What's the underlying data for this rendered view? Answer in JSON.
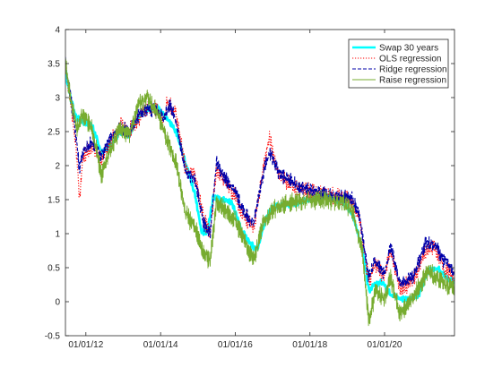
{
  "chart_data": {
    "type": "line",
    "title": "",
    "xlabel": "",
    "ylabel": "",
    "xlim": [
      "2011-06-15",
      "2021-11-15"
    ],
    "ylim": [
      -0.5,
      4
    ],
    "x_ticks": [
      "2012-01-01",
      "2014-01-01",
      "2016-01-01",
      "2018-01-01",
      "2020-01-01"
    ],
    "x_tick_labels": [
      "01/01/12",
      "01/01/14",
      "01/01/16",
      "01/01/18",
      "01/01/20"
    ],
    "y_ticks": [
      -0.5,
      0,
      0.5,
      1,
      1.5,
      2,
      2.5,
      3,
      3.5,
      4
    ],
    "y_tick_labels": [
      "-0.5",
      "0",
      "0.5",
      "1",
      "1.5",
      "2",
      "2.5",
      "3",
      "3.5",
      "4"
    ],
    "grid": false,
    "legend_position": "top-right",
    "series": [
      {
        "name": "Swap 30 years",
        "color": "#00ffff",
        "style": "solid-thick",
        "points": [
          [
            "2011-06-15",
            3.4
          ],
          [
            "2011-08-01",
            3.0
          ],
          [
            "2011-10-01",
            2.7
          ],
          [
            "2011-12-01",
            2.65
          ],
          [
            "2012-03-01",
            2.6
          ],
          [
            "2012-06-01",
            2.2
          ],
          [
            "2012-09-01",
            2.3
          ],
          [
            "2012-12-01",
            2.5
          ],
          [
            "2013-03-01",
            2.45
          ],
          [
            "2013-06-01",
            2.7
          ],
          [
            "2013-09-01",
            2.85
          ],
          [
            "2013-12-01",
            2.85
          ],
          [
            "2014-03-01",
            2.7
          ],
          [
            "2014-06-01",
            2.5
          ],
          [
            "2014-09-01",
            2.05
          ],
          [
            "2014-12-01",
            1.6
          ],
          [
            "2015-02-01",
            1.05
          ],
          [
            "2015-04-01",
            1.0
          ],
          [
            "2015-06-01",
            1.55
          ],
          [
            "2015-09-01",
            1.5
          ],
          [
            "2015-12-01",
            1.45
          ],
          [
            "2016-03-01",
            1.05
          ],
          [
            "2016-06-01",
            0.85
          ],
          [
            "2016-08-01",
            0.75
          ],
          [
            "2016-11-01",
            1.25
          ],
          [
            "2017-01-01",
            1.4
          ],
          [
            "2017-06-01",
            1.4
          ],
          [
            "2017-12-01",
            1.5
          ],
          [
            "2018-06-01",
            1.55
          ],
          [
            "2018-12-01",
            1.45
          ],
          [
            "2019-03-01",
            1.25
          ],
          [
            "2019-06-01",
            0.75
          ],
          [
            "2019-08-01",
            0.15
          ],
          [
            "2019-10-01",
            0.25
          ],
          [
            "2019-12-01",
            0.3
          ],
          [
            "2020-03-01",
            0.1
          ],
          [
            "2020-06-01",
            0.05
          ],
          [
            "2020-09-01",
            0.05
          ],
          [
            "2020-12-01",
            0.1
          ],
          [
            "2021-03-01",
            0.45
          ],
          [
            "2021-06-01",
            0.5
          ],
          [
            "2021-09-01",
            0.35
          ],
          [
            "2021-11-15",
            0.3
          ]
        ]
      },
      {
        "name": "OLS regression",
        "color": "#ff0000",
        "style": "dotted",
        "points": [
          [
            "2011-06-15",
            3.45
          ],
          [
            "2011-08-01",
            3.0
          ],
          [
            "2011-10-01",
            2.2
          ],
          [
            "2011-11-01",
            1.5
          ],
          [
            "2011-12-01",
            2.1
          ],
          [
            "2012-03-01",
            2.3
          ],
          [
            "2012-06-01",
            2.1
          ],
          [
            "2012-09-01",
            2.35
          ],
          [
            "2012-12-01",
            2.6
          ],
          [
            "2013-03-01",
            2.5
          ],
          [
            "2013-06-01",
            2.7
          ],
          [
            "2013-09-01",
            2.85
          ],
          [
            "2013-12-01",
            2.8
          ],
          [
            "2014-02-01",
            2.6
          ],
          [
            "2014-03-01",
            2.95
          ],
          [
            "2014-06-01",
            2.75
          ],
          [
            "2014-09-01",
            1.95
          ],
          [
            "2014-12-01",
            1.85
          ],
          [
            "2015-03-01",
            1.2
          ],
          [
            "2015-05-01",
            1.0
          ],
          [
            "2015-07-01",
            1.95
          ],
          [
            "2015-10-01",
            1.75
          ],
          [
            "2016-01-01",
            1.55
          ],
          [
            "2016-04-01",
            1.25
          ],
          [
            "2016-07-01",
            1.1
          ],
          [
            "2016-10-01",
            1.95
          ],
          [
            "2016-12-01",
            2.4
          ],
          [
            "2017-03-01",
            1.85
          ],
          [
            "2017-09-01",
            1.65
          ],
          [
            "2018-03-01",
            1.6
          ],
          [
            "2018-09-01",
            1.55
          ],
          [
            "2019-02-01",
            1.5
          ],
          [
            "2019-05-01",
            1.2
          ],
          [
            "2019-08-01",
            0.3
          ],
          [
            "2019-10-01",
            0.55
          ],
          [
            "2020-01-01",
            0.35
          ],
          [
            "2020-03-01",
            0.75
          ],
          [
            "2020-06-01",
            0.2
          ],
          [
            "2020-10-01",
            0.3
          ],
          [
            "2021-02-01",
            0.75
          ],
          [
            "2021-05-01",
            0.8
          ],
          [
            "2021-08-01",
            0.5
          ],
          [
            "2021-11-15",
            0.35
          ]
        ]
      },
      {
        "name": "Ridge regression",
        "color": "#0000aa",
        "style": "dashed",
        "points": [
          [
            "2011-06-15",
            3.5
          ],
          [
            "2011-08-01",
            3.05
          ],
          [
            "2011-10-01",
            2.4
          ],
          [
            "2011-11-01",
            1.9
          ],
          [
            "2011-12-01",
            2.2
          ],
          [
            "2012-03-01",
            2.35
          ],
          [
            "2012-06-01",
            2.15
          ],
          [
            "2012-09-01",
            2.4
          ],
          [
            "2012-12-01",
            2.55
          ],
          [
            "2013-03-01",
            2.5
          ],
          [
            "2013-06-01",
            2.75
          ],
          [
            "2013-09-01",
            2.85
          ],
          [
            "2013-12-01",
            2.8
          ],
          [
            "2014-02-01",
            2.7
          ],
          [
            "2014-04-01",
            2.9
          ],
          [
            "2014-06-01",
            2.65
          ],
          [
            "2014-09-01",
            1.9
          ],
          [
            "2014-12-01",
            1.8
          ],
          [
            "2015-03-01",
            1.15
          ],
          [
            "2015-05-01",
            1.0
          ],
          [
            "2015-07-01",
            2.05
          ],
          [
            "2015-10-01",
            1.8
          ],
          [
            "2016-01-01",
            1.6
          ],
          [
            "2016-04-01",
            1.3
          ],
          [
            "2016-07-01",
            1.15
          ],
          [
            "2016-10-01",
            1.9
          ],
          [
            "2016-12-01",
            2.2
          ],
          [
            "2017-03-01",
            1.9
          ],
          [
            "2017-09-01",
            1.7
          ],
          [
            "2018-03-01",
            1.6
          ],
          [
            "2018-09-01",
            1.55
          ],
          [
            "2019-02-01",
            1.55
          ],
          [
            "2019-05-01",
            1.25
          ],
          [
            "2019-08-01",
            0.35
          ],
          [
            "2019-10-01",
            0.6
          ],
          [
            "2020-01-01",
            0.4
          ],
          [
            "2020-03-01",
            0.8
          ],
          [
            "2020-06-01",
            0.25
          ],
          [
            "2020-10-01",
            0.35
          ],
          [
            "2021-02-01",
            0.85
          ],
          [
            "2021-05-01",
            0.85
          ],
          [
            "2021-08-01",
            0.6
          ],
          [
            "2021-11-15",
            0.45
          ]
        ]
      },
      {
        "name": "Raise regression",
        "color": "#77ac30",
        "style": "solid",
        "points": [
          [
            "2011-06-15",
            3.55
          ],
          [
            "2011-08-01",
            3.0
          ],
          [
            "2011-10-01",
            2.55
          ],
          [
            "2011-12-01",
            2.75
          ],
          [
            "2012-03-01",
            2.55
          ],
          [
            "2012-06-01",
            1.85
          ],
          [
            "2012-09-01",
            2.25
          ],
          [
            "2012-12-01",
            2.55
          ],
          [
            "2013-03-01",
            2.45
          ],
          [
            "2013-06-01",
            2.9
          ],
          [
            "2013-09-01",
            3.0
          ],
          [
            "2013-12-01",
            2.75
          ],
          [
            "2014-03-01",
            2.4
          ],
          [
            "2014-06-01",
            2.05
          ],
          [
            "2014-09-01",
            1.3
          ],
          [
            "2014-12-01",
            1.1
          ],
          [
            "2015-03-01",
            0.7
          ],
          [
            "2015-05-01",
            0.6
          ],
          [
            "2015-07-01",
            1.45
          ],
          [
            "2015-10-01",
            1.35
          ],
          [
            "2016-01-01",
            1.2
          ],
          [
            "2016-04-01",
            0.9
          ],
          [
            "2016-07-01",
            0.6
          ],
          [
            "2016-10-01",
            1.15
          ],
          [
            "2017-01-01",
            1.35
          ],
          [
            "2017-06-01",
            1.45
          ],
          [
            "2017-12-01",
            1.5
          ],
          [
            "2018-06-01",
            1.5
          ],
          [
            "2018-12-01",
            1.45
          ],
          [
            "2019-03-01",
            1.3
          ],
          [
            "2019-06-01",
            0.7
          ],
          [
            "2019-08-01",
            -0.3
          ],
          [
            "2019-10-01",
            0.15
          ],
          [
            "2020-01-01",
            0.05
          ],
          [
            "2020-03-01",
            0.35
          ],
          [
            "2020-06-01",
            -0.2
          ],
          [
            "2020-09-01",
            0.0
          ],
          [
            "2020-12-01",
            0.2
          ],
          [
            "2021-03-01",
            0.45
          ],
          [
            "2021-06-01",
            0.35
          ],
          [
            "2021-09-01",
            0.25
          ],
          [
            "2021-11-15",
            0.2
          ]
        ]
      }
    ]
  }
}
